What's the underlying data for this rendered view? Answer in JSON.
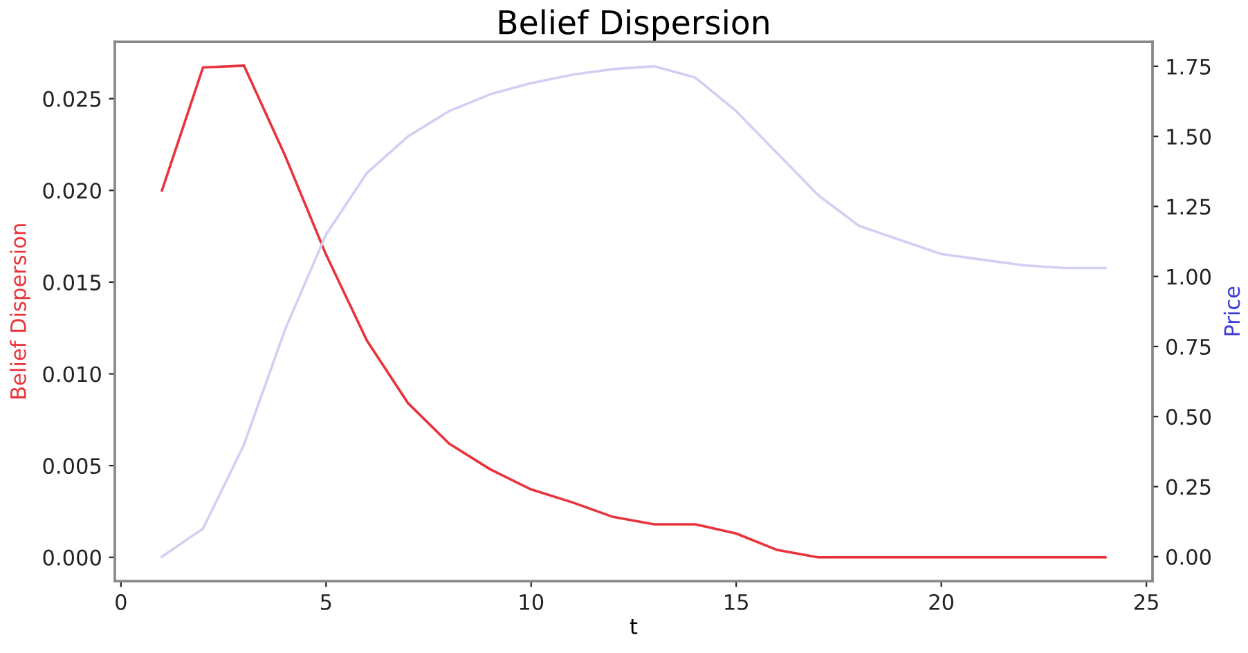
{
  "chart_data": {
    "type": "line",
    "title": "Belief Dispersion",
    "xlabel": "t",
    "ylabel": "Belief Dispersion",
    "y2label": "Price",
    "x": [
      1,
      2,
      3,
      4,
      5,
      6,
      7,
      8,
      9,
      10,
      11,
      12,
      13,
      14,
      15,
      16,
      17,
      18,
      19,
      20,
      21,
      22,
      23,
      24
    ],
    "series": [
      {
        "color": "#e8333a",
        "values": [
          0.02,
          0.0267,
          0.0268,
          0.0219,
          0.0165,
          0.0118,
          0.0084,
          0.0062,
          0.0048,
          0.0037,
          0.003,
          0.0022,
          0.0018,
          0.0018,
          0.0013,
          0.0004,
          0,
          0,
          0,
          0,
          0,
          0,
          0,
          0
        ]
      },
      {
        "color": "#d0d0f4",
        "axis": "y2",
        "values": [
          0.0,
          0.1,
          0.4,
          0.81,
          1.15,
          1.37,
          1.5,
          1.59,
          1.65,
          1.69,
          1.72,
          1.74,
          1.75,
          1.71,
          1.59,
          1.44,
          1.29,
          1.18,
          1.13,
          1.08,
          1.06,
          1.04,
          1.03,
          1.03
        ]
      }
    ],
    "xlim": [
      -0.15,
      25.15
    ],
    "xticks": [
      0,
      5,
      10,
      15,
      20,
      25
    ],
    "ylim": [
      -0.0013,
      0.0281
    ],
    "yticks": [
      {
        "value": 0,
        "label": "0.000"
      },
      {
        "value": 0.005,
        "label": "0.005"
      },
      {
        "value": 0.01,
        "label": "0.010"
      },
      {
        "value": 0.015,
        "label": "0.015"
      },
      {
        "value": 0.02,
        "label": "0.020"
      },
      {
        "value": 0.025,
        "label": "0.025"
      }
    ],
    "y2lim": [
      -0.0875,
      1.8375
    ],
    "y2ticks": [
      {
        "value": 0,
        "label": "0.00"
      },
      {
        "value": 0.25,
        "label": "0.25"
      },
      {
        "value": 0.5,
        "label": "0.50"
      },
      {
        "value": 0.75,
        "label": "0.75"
      },
      {
        "value": 1.0,
        "label": "1.00"
      },
      {
        "value": 1.25,
        "label": "1.25"
      },
      {
        "value": 1.5,
        "label": "1.50"
      },
      {
        "value": 1.75,
        "label": "1.75"
      }
    ],
    "grid": false,
    "marker": "none",
    "line_style": "solid"
  }
}
